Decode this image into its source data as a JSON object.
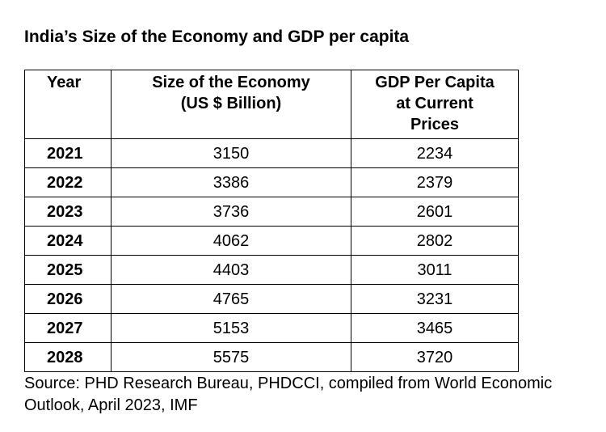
{
  "title": "India’s Size of the Economy and GDP per capita",
  "table": {
    "headers": {
      "year": "Year",
      "economy_line1": "Size of the Economy",
      "economy_line2": "(US $ Billion)",
      "gdp_line1": "GDP Per Capita",
      "gdp_line2": "at Current",
      "gdp_line3": "Prices"
    },
    "rows": [
      {
        "year": "2021",
        "economy": "3150",
        "gdp": "2234"
      },
      {
        "year": "2022",
        "economy": "3386",
        "gdp": "2379"
      },
      {
        "year": "2023",
        "economy": "3736",
        "gdp": "2601"
      },
      {
        "year": "2024",
        "economy": "4062",
        "gdp": "2802"
      },
      {
        "year": "2025",
        "economy": "4403",
        "gdp": "3011"
      },
      {
        "year": "2026",
        "economy": "4765",
        "gdp": "3231"
      },
      {
        "year": "2027",
        "economy": "5153",
        "gdp": "3465"
      },
      {
        "year": "2028",
        "economy": "5575",
        "gdp": "3720"
      }
    ]
  },
  "source": "Source: PHD Research Bureau, PHDCCI, compiled from World Economic Outlook, April 2023, IMF"
}
